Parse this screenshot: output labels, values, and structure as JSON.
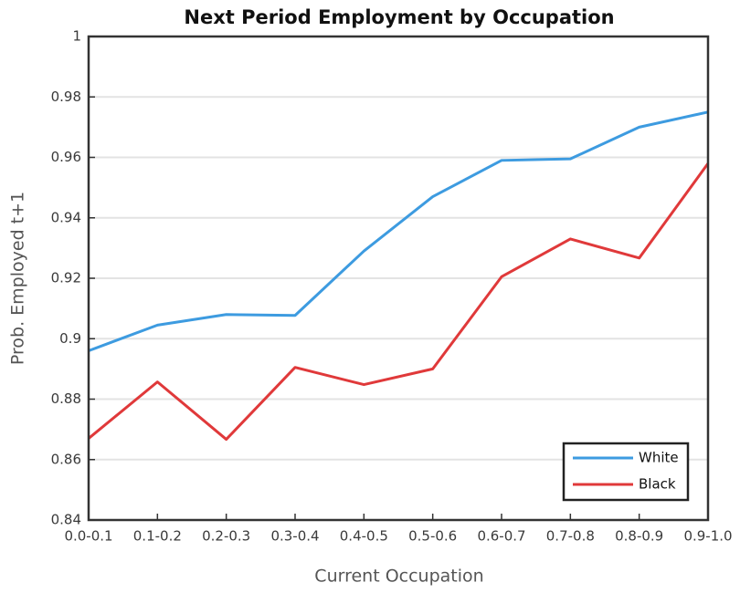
{
  "chart_data": {
    "type": "line",
    "title": "Next Period Employment by Occupation",
    "x_label": "Current Occupation",
    "y_label": "Prob. Employed t+1",
    "categories": [
      "0.0-0.1",
      "0.1-0.2",
      "0.2-0.3",
      "0.3-0.4",
      "0.4-0.5",
      "0.5-0.6",
      "0.6-0.7",
      "0.7-0.8",
      "0.8-0.9",
      "0.9-1.0"
    ],
    "series": [
      {
        "name": "White",
        "color": "#3d9be0",
        "values": [
          0.896,
          0.9045,
          0.908,
          0.9077,
          0.929,
          0.947,
          0.959,
          0.9595,
          0.97,
          0.975
        ]
      },
      {
        "name": "Black",
        "color": "#e0393a",
        "values": [
          0.867,
          0.8857,
          0.8667,
          0.8905,
          0.8848,
          0.89,
          0.9205,
          0.933,
          0.9267,
          0.958
        ]
      }
    ],
    "ylim": [
      0.84,
      1
    ],
    "yticks": [
      0.84,
      0.86,
      0.88,
      0.9,
      0.92,
      0.94,
      0.96,
      0.98,
      1
    ],
    "grid": true,
    "legend": "lower right"
  }
}
